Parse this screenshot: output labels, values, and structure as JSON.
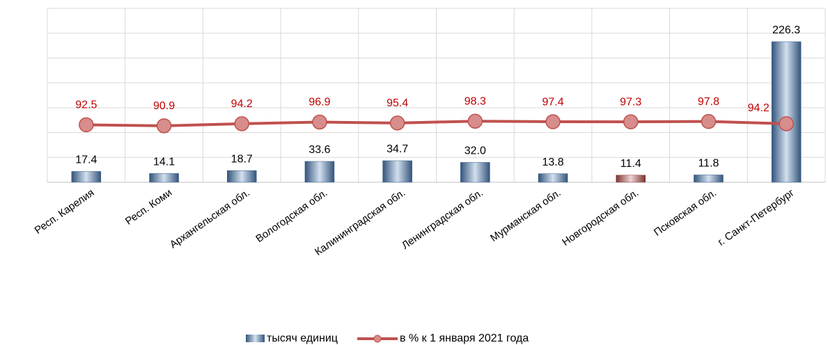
{
  "chart_data": {
    "type": "bar_line",
    "categories": [
      "Респ. Карелия",
      "Респ. Коми",
      "Архангельская обл.",
      "Вологодская обл.",
      "Калининградская обл.",
      "Ленинградская обл.",
      "Мурманская обл.",
      "Новгородская обл.",
      "Псковская обл.",
      "г. Санкт-Петербург"
    ],
    "series": [
      {
        "name": "тысяч единиц",
        "type": "bar",
        "color": "#4f81bd",
        "colors": [
          "#4f81bd",
          "#4f81bd",
          "#4f81bd",
          "#4f81bd",
          "#4f81bd",
          "#4f81bd",
          "#4f81bd",
          "#c0504d",
          "#4f81bd",
          "#4f81bd"
        ],
        "values": [
          17.4,
          14.1,
          18.7,
          33.6,
          34.7,
          32.0,
          13.8,
          11.4,
          11.8,
          226.3
        ],
        "value_labels": [
          "17.4",
          "14.1",
          "18.7",
          "33.6",
          "34.7",
          "32.0",
          "13.8",
          "11.4",
          "11.8",
          "226.3"
        ]
      },
      {
        "name": "в % к 1 января 2021 года",
        "type": "line",
        "axis": "y2",
        "color": "#c0504d",
        "values": [
          92.5,
          90.9,
          94.2,
          96.9,
          95.4,
          98.3,
          97.4,
          97.3,
          97.8,
          94.2
        ]
      }
    ],
    "ylim": [
      0,
      280
    ],
    "yticks": [
      0,
      40,
      80,
      120,
      160,
      200,
      240,
      280
    ],
    "y2lim": [
      0,
      280
    ],
    "grid": true,
    "legend": "bottom"
  }
}
